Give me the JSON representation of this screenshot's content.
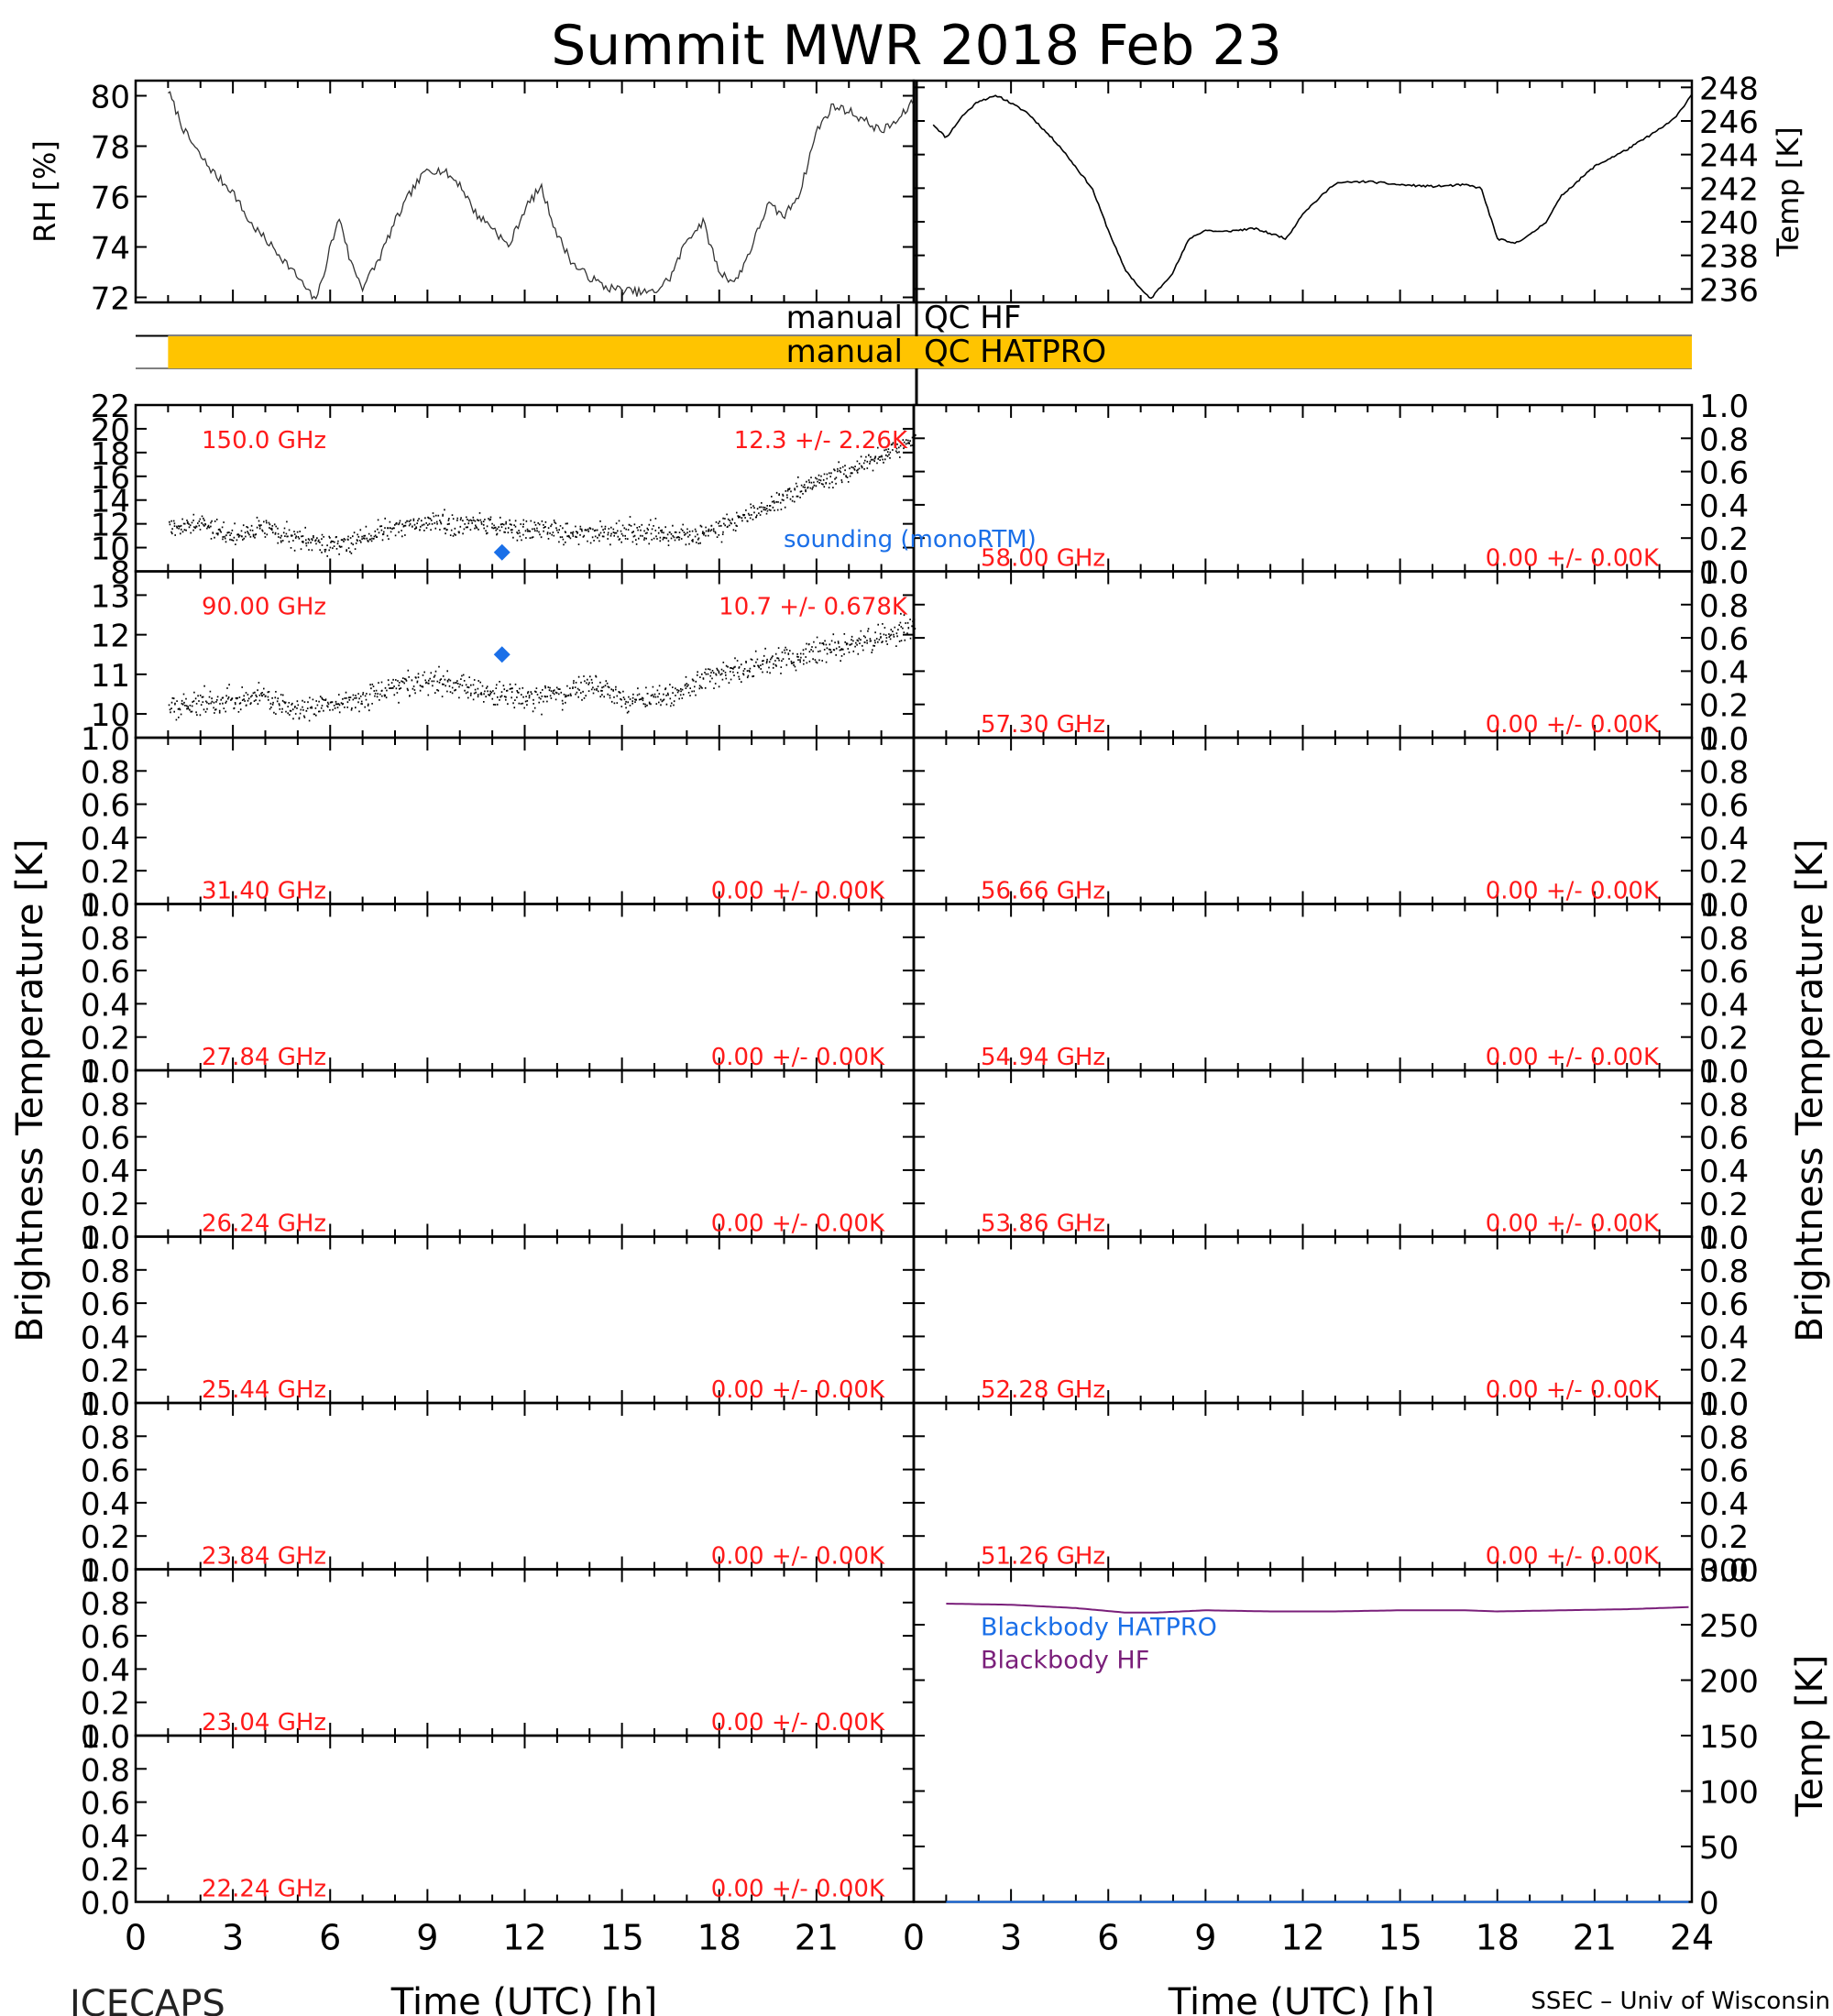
{
  "title": "Summit MWR 2018 Feb 23",
  "footer": {
    "left": "ICECAPS",
    "right": "SSEC – Univ of Wisconsin"
  },
  "time_axis": {
    "label": "Time (UTC) [h]",
    "range": [
      0,
      24
    ],
    "ticks": [
      0,
      3,
      6,
      9,
      12,
      15,
      18,
      21,
      24
    ],
    "tick_labels_left": [
      "0",
      "3",
      "6",
      "9",
      "12",
      "15",
      "18",
      "21"
    ],
    "tick_labels_right": [
      "0",
      "3",
      "6",
      "9",
      "12",
      "15",
      "18",
      "21",
      "24"
    ]
  },
  "tb_axis_label": "Brightness Temperature [K]",
  "qc": {
    "hf_label": "manual QC HF",
    "hatpro_label": "manual QC HATPRO",
    "hatpro_flag_range_h": [
      1.0,
      24.0
    ],
    "flag_color": "#FFC400"
  },
  "colors": {
    "channel_label": "#FF1A1A",
    "sounding": "#1A6FE8",
    "blackbody_hatpro": "#1A6FE8",
    "blackbody_hf": "#7A1F7A",
    "data": "#000000"
  },
  "chart_data": [
    {
      "type": "line",
      "id": "rh",
      "ylabel": "RH [%]",
      "ylim": [
        71.8,
        80.6
      ],
      "yticks": [
        72,
        74,
        76,
        78,
        80
      ],
      "x": [
        1.0,
        1.5,
        2.0,
        2.5,
        3.0,
        3.5,
        4.0,
        4.5,
        5.0,
        5.5,
        5.7,
        6.0,
        6.3,
        6.6,
        7.0,
        7.5,
        8.0,
        8.5,
        9.0,
        9.5,
        10.0,
        10.5,
        11.0,
        11.5,
        12.0,
        12.5,
        13.0,
        13.5,
        14.0,
        14.5,
        15.0,
        15.5,
        16.0,
        16.5,
        17.0,
        17.5,
        18.0,
        18.5,
        19.0,
        19.5,
        20.0,
        20.5,
        21.0,
        21.5,
        22.0,
        22.5,
        23.0,
        23.5,
        24.0
      ],
      "y": [
        80.2,
        78.6,
        77.6,
        76.8,
        76.2,
        75.0,
        74.3,
        73.6,
        72.8,
        71.9,
        72.4,
        74.0,
        75.2,
        73.5,
        72.4,
        73.5,
        75.0,
        76.2,
        77.1,
        77.0,
        76.5,
        75.3,
        74.8,
        74.0,
        75.5,
        76.4,
        74.5,
        73.3,
        72.8,
        72.4,
        72.3,
        72.2,
        72.2,
        72.8,
        74.3,
        75.0,
        73.0,
        72.6,
        74.0,
        75.7,
        75.2,
        76.2,
        78.6,
        79.6,
        79.4,
        79.0,
        78.6,
        79.0,
        79.8
      ]
    },
    {
      "type": "line",
      "id": "temp",
      "ylabel": "Temp [K]",
      "ylim": [
        235.2,
        248.4
      ],
      "yticks": [
        236,
        238,
        240,
        242,
        244,
        246,
        248
      ],
      "x": [
        0.6,
        1.0,
        1.5,
        2.0,
        2.6,
        3.5,
        4.5,
        5.5,
        6.0,
        6.5,
        7.0,
        7.3,
        8.0,
        8.5,
        9.0,
        9.5,
        10.5,
        11.5,
        12.0,
        12.5,
        13.0,
        14.0,
        15.0,
        16.0,
        17.0,
        17.5,
        18.0,
        18.5,
        19.0,
        19.5,
        20.0,
        21.0,
        22.0,
        23.0,
        23.5,
        24.0
      ],
      "y": [
        245.8,
        245.0,
        246.3,
        247.2,
        247.5,
        246.5,
        244.5,
        242.0,
        239.5,
        237.2,
        236.0,
        235.4,
        237.0,
        239.0,
        239.5,
        239.4,
        239.6,
        239.0,
        240.5,
        241.4,
        242.3,
        242.4,
        242.2,
        242.1,
        242.2,
        242.0,
        239.0,
        238.7,
        239.2,
        240.0,
        241.6,
        243.3,
        244.3,
        245.5,
        246.2,
        247.6
      ]
    },
    {
      "type": "scatter",
      "id": "ch-150",
      "channel": "150.0 GHz",
      "stats": "12.3 +/-  2.26K",
      "ylim": [
        8,
        22
      ],
      "yticks": [
        8,
        10,
        12,
        14,
        16,
        18,
        20,
        22
      ],
      "x": [
        1.0,
        2.0,
        3.0,
        4.0,
        5.0,
        6.0,
        7.0,
        8.0,
        9.0,
        10.0,
        11.0,
        12.0,
        13.0,
        14.0,
        15.0,
        16.0,
        17.0,
        18.0,
        19.0,
        20.0,
        21.0,
        22.0,
        23.0,
        24.0
      ],
      "y": [
        11.8,
        11.9,
        11.0,
        11.8,
        10.7,
        10.2,
        10.8,
        11.8,
        12.3,
        11.9,
        12.0,
        11.5,
        11.3,
        11.2,
        11.3,
        11.3,
        11.0,
        11.6,
        13.0,
        14.2,
        15.5,
        16.5,
        17.5,
        19.5
      ],
      "sounding": {
        "x": 11.3,
        "y": 9.6
      },
      "sounding_label": "sounding (monoRTM)"
    },
    {
      "type": "scatter",
      "id": "ch-90",
      "channel": "90.00 GHz",
      "stats": "10.7 +/- 0.678K",
      "ylim": [
        9.4,
        13.6
      ],
      "yticks": [
        10,
        11,
        12,
        13
      ],
      "x": [
        1.0,
        2.0,
        3.0,
        4.0,
        5.0,
        6.0,
        7.0,
        8.0,
        9.0,
        10.0,
        11.0,
        12.0,
        13.0,
        14.0,
        15.0,
        16.0,
        17.0,
        18.0,
        19.0,
        20.0,
        21.0,
        22.0,
        23.0,
        24.0
      ],
      "y": [
        10.2,
        10.3,
        10.3,
        10.4,
        10.1,
        10.2,
        10.4,
        10.7,
        10.8,
        10.7,
        10.5,
        10.4,
        10.5,
        10.7,
        10.4,
        10.4,
        10.7,
        11.0,
        11.2,
        11.4,
        11.6,
        11.7,
        11.9,
        12.3
      ],
      "sounding": {
        "x": 11.3,
        "y": 11.5
      }
    },
    {
      "type": "bar",
      "id": "blackbody",
      "ylabel": "Temp [K]",
      "ylim": [
        0,
        300
      ],
      "yticks": [
        0,
        50,
        100,
        150,
        200,
        250,
        300
      ],
      "series": [
        {
          "name": "Blackbody HATPRO",
          "x": [
            1.0,
            24.0
          ],
          "y": [
            0,
            0
          ]
        },
        {
          "name": "Blackbody HF",
          "x": [
            1.0,
            3.0,
            5.0,
            6.5,
            7.5,
            9.0,
            11.0,
            13.0,
            15.0,
            17.0,
            18.0,
            20.0,
            22.0,
            24.0
          ],
          "y": [
            269,
            268,
            265,
            261,
            261,
            263,
            262,
            262,
            263,
            263,
            262,
            263,
            264,
            266
          ]
        }
      ]
    },
    {
      "type": "line",
      "id": "empty-channels",
      "ylim": [
        0,
        1
      ],
      "yticks": [
        0.0,
        0.2,
        0.4,
        0.6,
        0.8,
        1.0
      ],
      "ytick_labels": [
        "0.0",
        "0.2",
        "0.4",
        "0.6",
        "0.8",
        "1.0"
      ],
      "channels_left": [
        {
          "channel": "31.40 GHz",
          "stats": "0.00 +/- 0.00K"
        },
        {
          "channel": "27.84 GHz",
          "stats": "0.00 +/- 0.00K"
        },
        {
          "channel": "26.24 GHz",
          "stats": "0.00 +/- 0.00K"
        },
        {
          "channel": "25.44 GHz",
          "stats": "0.00 +/- 0.00K"
        },
        {
          "channel": "23.84 GHz",
          "stats": "0.00 +/- 0.00K"
        },
        {
          "channel": "23.04 GHz",
          "stats": "0.00 +/- 0.00K"
        },
        {
          "channel": "22.24 GHz",
          "stats": "0.00 +/- 0.00K"
        }
      ],
      "channels_right": [
        {
          "channel": "58.00 GHz",
          "stats": "0.00 +/- 0.00K"
        },
        {
          "channel": "57.30 GHz",
          "stats": "0.00 +/- 0.00K"
        },
        {
          "channel": "56.66 GHz",
          "stats": "0.00 +/- 0.00K"
        },
        {
          "channel": "54.94 GHz",
          "stats": "0.00 +/- 0.00K"
        },
        {
          "channel": "53.86 GHz",
          "stats": "0.00 +/- 0.00K"
        },
        {
          "channel": "52.28 GHz",
          "stats": "0.00 +/- 0.00K"
        },
        {
          "channel": "51.26 GHz",
          "stats": "0.00 +/- 0.00K"
        }
      ]
    }
  ]
}
